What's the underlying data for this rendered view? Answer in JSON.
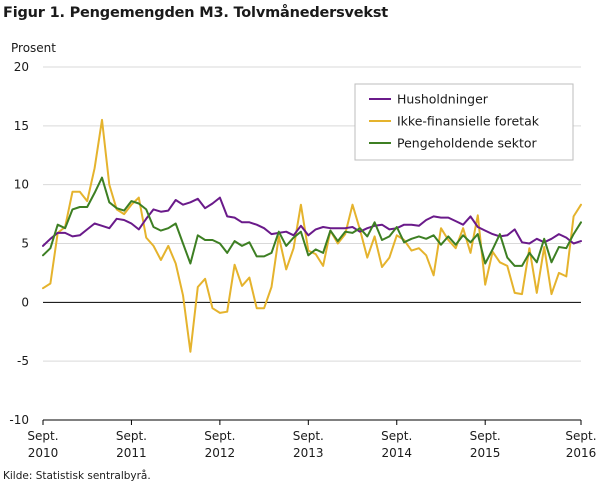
{
  "figure": {
    "title": "Figur 1. Pengemengden M3. Tolvmånedersvekst",
    "source": "Kilde: Statistisk sentralbyrå."
  },
  "chart_data": {
    "type": "line",
    "title": "Figur 1. Pengemengden M3. Tolvmånedersvekst",
    "ylabel": "Prosent",
    "xlabel": "",
    "ylim": [
      -10,
      20
    ],
    "yticks": [
      -10,
      -5,
      0,
      5,
      10,
      15,
      20
    ],
    "x_start": "2010-09",
    "x_end": "2016-09",
    "x_tick_labels": [
      [
        "Sept.",
        "2010"
      ],
      [
        "Sept.",
        "2011"
      ],
      [
        "Sept.",
        "2012"
      ],
      [
        "Sept.",
        "2013"
      ],
      [
        "Sept.",
        "2014"
      ],
      [
        "Sept.",
        "2015"
      ],
      [
        "Sept.",
        "2016"
      ]
    ],
    "grid": "horizontal",
    "legend_position": "top-right",
    "series": [
      {
        "name": "Husholdninger",
        "color": "#6a1a8a",
        "values": [
          4.8,
          5.4,
          5.9,
          5.9,
          5.6,
          5.7,
          6.2,
          6.7,
          6.5,
          6.3,
          7.1,
          7.0,
          6.7,
          6.2,
          7.1,
          7.9,
          7.7,
          7.8,
          8.7,
          8.3,
          8.5,
          8.8,
          8.0,
          8.4,
          8.9,
          7.3,
          7.2,
          6.8,
          6.8,
          6.6,
          6.3,
          5.8,
          5.9,
          6.0,
          5.7,
          6.5,
          5.7,
          6.2,
          6.4,
          6.3,
          6.3,
          6.3,
          6.4,
          6.0,
          6.3,
          6.5,
          6.6,
          6.2,
          6.3,
          6.6,
          6.6,
          6.5,
          7.0,
          7.3,
          7.2,
          7.2,
          6.9,
          6.6,
          7.3,
          6.4,
          6.1,
          5.8,
          5.6,
          5.7,
          6.2,
          5.1,
          5.0,
          5.4,
          5.1,
          5.4,
          5.8,
          5.5,
          5.0,
          5.2
        ]
      },
      {
        "name": "Ikke-finansielle foretak",
        "color": "#e5b32d",
        "values": [
          1.2,
          1.6,
          5.9,
          6.4,
          9.4,
          9.4,
          8.6,
          11.4,
          15.5,
          10.0,
          7.9,
          7.5,
          8.3,
          8.9,
          5.5,
          4.8,
          3.6,
          4.8,
          3.3,
          0.6,
          -4.2,
          1.3,
          2.0,
          -0.5,
          -0.9,
          -0.8,
          3.2,
          1.4,
          2.1,
          -0.5,
          -0.5,
          1.3,
          5.6,
          2.8,
          4.6,
          8.3,
          4.4,
          4.1,
          3.1,
          6.1,
          5.0,
          5.8,
          8.3,
          6.2,
          3.8,
          5.6,
          3.0,
          3.8,
          5.7,
          5.3,
          4.4,
          4.6,
          4.0,
          2.3,
          6.3,
          5.3,
          4.6,
          6.3,
          4.2,
          7.4,
          1.5,
          4.3,
          3.4,
          3.1,
          0.8,
          0.7,
          4.6,
          0.8,
          4.7,
          0.7,
          2.5,
          2.2,
          7.3,
          8.3
        ]
      },
      {
        "name": "Pengeholdende sektor",
        "color": "#3d7f23",
        "values": [
          4.0,
          4.6,
          6.6,
          6.3,
          7.9,
          8.1,
          8.1,
          9.3,
          10.6,
          8.5,
          8.0,
          7.8,
          8.6,
          8.4,
          7.9,
          6.4,
          6.1,
          6.3,
          6.7,
          5.0,
          3.3,
          5.7,
          5.3,
          5.3,
          5.0,
          4.2,
          5.2,
          4.8,
          5.1,
          3.9,
          3.9,
          4.2,
          6.0,
          4.8,
          5.5,
          6.0,
          4.0,
          4.5,
          4.2,
          6.1,
          5.2,
          6.0,
          5.9,
          6.3,
          5.6,
          6.8,
          5.3,
          5.6,
          6.4,
          5.1,
          5.4,
          5.6,
          5.4,
          5.7,
          4.9,
          5.6,
          4.9,
          5.7,
          5.1,
          5.8,
          3.3,
          4.5,
          5.8,
          3.8,
          3.1,
          3.1,
          4.2,
          3.4,
          5.4,
          3.4,
          4.7,
          4.6,
          5.8,
          6.8
        ]
      }
    ]
  }
}
